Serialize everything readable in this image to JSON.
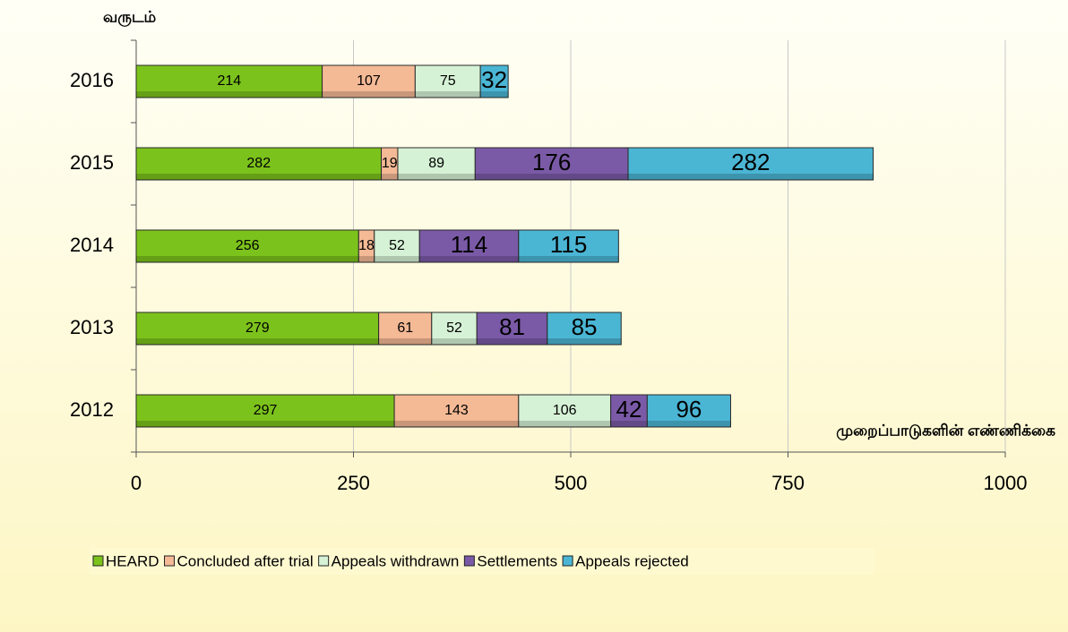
{
  "chart_data": {
    "type": "stacked-bar-horizontal",
    "y_axis_label": "வருடம்",
    "x_axis_label": "முறைப்பாடுகளின் எண்ணிக்கை",
    "categories": [
      "2016",
      "2015",
      "2014",
      "2013",
      "2012"
    ],
    "series": [
      {
        "name": "HEARD",
        "color": "#7cc21c",
        "values": [
          214,
          282,
          256,
          279,
          297
        ]
      },
      {
        "name": "Concluded after trial",
        "color": "#f4b995",
        "values": [
          107,
          19,
          18,
          61,
          143
        ]
      },
      {
        "name": "Appeals withdrawn",
        "color": "#d6f2d6",
        "values": [
          75,
          89,
          52,
          52,
          106
        ]
      },
      {
        "name": "Settlements",
        "color": "#7a5aa6",
        "values": [
          null,
          176,
          114,
          81,
          42
        ]
      },
      {
        "name": "Appeals rejected",
        "color": "#4bb5d4",
        "values": [
          32,
          282,
          115,
          85,
          96
        ]
      }
    ],
    "xlim": [
      0,
      1000
    ],
    "xticks": [
      0,
      250,
      500,
      750,
      1000
    ],
    "grid": true,
    "legend": "bottom"
  }
}
